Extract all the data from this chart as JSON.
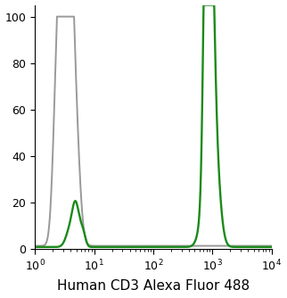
{
  "title": "",
  "xlabel": "Human CD3 Alexa Fluor 488",
  "ylabel": "",
  "xlim_log": [
    1,
    10000
  ],
  "ylim": [
    0,
    105
  ],
  "yticks": [
    0,
    20,
    40,
    60,
    80,
    100
  ],
  "gray_color": "#999999",
  "green_color": "#1a8a1a",
  "linewidth": 1.4,
  "xlabel_fontsize": 11,
  "tick_fontsize": 9,
  "background_color": "#ffffff"
}
